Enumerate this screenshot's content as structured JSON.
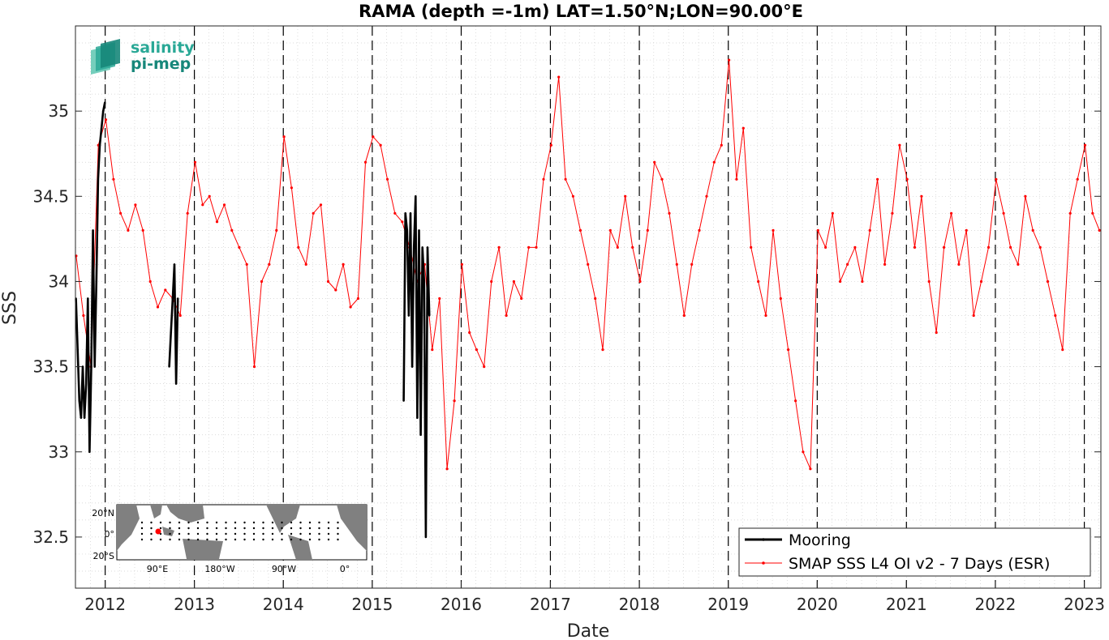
{
  "chart_data": {
    "type": "line",
    "title": "RAMA (depth =-1m) LAT=1.50°N;LON=90.00°E",
    "xlabel": "Date",
    "ylabel": "SSS",
    "xlim": [
      "2011-09-01",
      "2023-03-10"
    ],
    "ylim": [
      32.2,
      35.5
    ],
    "x_ticks": [
      "2012",
      "2013",
      "2014",
      "2015",
      "2016",
      "2017",
      "2018",
      "2019",
      "2020",
      "2021",
      "2022",
      "2023"
    ],
    "y_ticks": [
      32.5,
      33,
      33.5,
      34,
      34.5,
      35
    ],
    "y_tick_labels": [
      "32.5",
      "33",
      "33.5",
      "34",
      "34.5",
      "35"
    ],
    "grid": true,
    "legend_position": "bottom-right",
    "year_lines_dashed": true,
    "series": [
      {
        "name": "Mooring",
        "color": "#000000",
        "x": [
          "2011-09-03",
          "2011-09-10",
          "2011-09-17",
          "2011-09-24",
          "2011-10-01",
          "2011-10-08",
          "2011-10-15",
          "2011-10-22",
          "2011-10-29",
          "2011-11-05",
          "2011-11-12",
          "2011-11-19",
          "2011-11-26",
          "2011-12-03",
          "2011-12-10",
          "2011-12-17",
          "2011-12-24",
          "2011-12-31",
          null,
          "2012-09-20",
          "2012-09-27",
          "2012-10-04",
          "2012-10-11",
          "2012-10-18",
          "2012-10-25",
          null,
          "2015-05-10",
          "2015-05-17",
          "2015-05-24",
          "2015-05-31",
          "2015-06-07",
          "2015-06-14",
          "2015-06-21",
          "2015-06-28",
          "2015-07-05",
          "2015-07-12",
          "2015-07-19",
          "2015-07-26",
          "2015-08-02",
          "2015-08-09",
          "2015-08-16",
          "2015-08-23"
        ],
        "y": [
          33.9,
          33.6,
          33.3,
          33.2,
          33.5,
          33.2,
          33.4,
          33.9,
          33.0,
          33.5,
          34.3,
          33.5,
          34.0,
          34.6,
          34.8,
          34.9,
          35.0,
          35.05,
          null,
          33.5,
          33.7,
          33.9,
          34.1,
          33.4,
          33.9,
          null,
          33.3,
          34.4,
          34.3,
          33.8,
          34.4,
          33.5,
          34.2,
          34.5,
          33.2,
          34.3,
          33.1,
          34.2,
          34.0,
          32.5,
          34.2,
          33.8
        ]
      },
      {
        "name": "SMAP SSS L4 OI v2 - 7 Days (ESR)",
        "color": "#ff0000",
        "x": [
          "2011-09-04",
          "2011-10-04",
          "2011-11-04",
          "2011-12-04",
          "2012-01-04",
          "2012-02-04",
          "2012-03-04",
          "2012-04-04",
          "2012-05-04",
          "2012-06-04",
          "2012-07-04",
          "2012-08-04",
          "2012-09-04",
          "2012-10-04",
          "2012-11-04",
          "2012-12-04",
          "2013-01-04",
          "2013-02-04",
          "2013-03-04",
          "2013-04-04",
          "2013-05-04",
          "2013-06-04",
          "2013-07-04",
          "2013-08-04",
          "2013-09-04",
          "2013-10-04",
          "2013-11-04",
          "2013-12-04",
          "2014-01-04",
          "2014-02-04",
          "2014-03-04",
          "2014-04-04",
          "2014-05-04",
          "2014-06-04",
          "2014-07-04",
          "2014-08-04",
          "2014-09-04",
          "2014-10-04",
          "2014-11-04",
          "2014-12-04",
          "2015-01-04",
          "2015-02-04",
          "2015-03-04",
          "2015-04-04",
          "2015-05-04",
          "2015-06-04",
          "2015-07-04",
          "2015-08-04",
          "2015-09-04",
          "2015-10-04",
          "2015-11-04",
          "2015-12-04",
          "2016-01-04",
          "2016-02-04",
          "2016-03-04",
          "2016-04-04",
          "2016-05-04",
          "2016-06-04",
          "2016-07-04",
          "2016-08-04",
          "2016-09-04",
          "2016-10-04",
          "2016-11-04",
          "2016-12-04",
          "2017-01-04",
          "2017-02-04",
          "2017-03-04",
          "2017-04-04",
          "2017-05-04",
          "2017-06-04",
          "2017-07-04",
          "2017-08-04",
          "2017-09-04",
          "2017-10-04",
          "2017-11-04",
          "2017-12-04",
          "2018-01-04",
          "2018-02-04",
          "2018-03-04",
          "2018-04-04",
          "2018-05-04",
          "2018-06-04",
          "2018-07-04",
          "2018-08-04",
          "2018-09-04",
          "2018-10-04",
          "2018-11-04",
          "2018-12-04",
          "2019-01-04",
          "2019-02-04",
          "2019-03-04",
          "2019-04-04",
          "2019-05-04",
          "2019-06-04",
          "2019-07-04",
          "2019-08-04",
          "2019-09-04",
          "2019-10-04",
          "2019-11-04",
          "2019-12-04",
          "2020-01-04",
          "2020-02-04",
          "2020-03-04",
          "2020-04-04",
          "2020-05-04",
          "2020-06-04",
          "2020-07-04",
          "2020-08-04",
          "2020-09-04",
          "2020-10-04",
          "2020-11-04",
          "2020-12-04",
          "2021-01-04",
          "2021-02-04",
          "2021-03-04",
          "2021-04-04",
          "2021-05-04",
          "2021-06-04",
          "2021-07-04",
          "2021-08-04",
          "2021-09-04",
          "2021-10-04",
          "2021-11-04",
          "2021-12-04",
          "2022-01-04",
          "2022-02-04",
          "2022-03-04",
          "2022-04-04",
          "2022-05-04",
          "2022-06-04",
          "2022-07-04",
          "2022-08-04",
          "2022-09-04",
          "2022-10-04",
          "2022-11-04",
          "2022-12-04",
          "2023-01-04",
          "2023-02-04",
          "2023-03-04"
        ],
        "y": [
          34.15,
          33.8,
          33.5,
          34.8,
          34.95,
          34.6,
          34.4,
          34.3,
          34.45,
          34.3,
          34.0,
          33.85,
          33.95,
          33.9,
          33.8,
          34.4,
          34.7,
          34.45,
          34.5,
          34.35,
          34.45,
          34.3,
          34.2,
          34.1,
          33.5,
          34.0,
          34.1,
          34.3,
          34.85,
          34.55,
          34.2,
          34.1,
          34.4,
          34.45,
          34.0,
          33.95,
          34.1,
          33.85,
          33.9,
          34.7,
          34.85,
          34.8,
          34.6,
          34.4,
          34.35,
          34.2,
          34.0,
          34.1,
          33.6,
          33.9,
          32.9,
          33.3,
          34.1,
          33.7,
          33.6,
          33.5,
          34.0,
          34.2,
          33.8,
          34.0,
          33.9,
          34.2,
          34.2,
          34.6,
          34.8,
          35.2,
          34.6,
          34.5,
          34.3,
          34.1,
          33.9,
          33.6,
          34.3,
          34.2,
          34.5,
          34.2,
          34.0,
          34.3,
          34.7,
          34.6,
          34.4,
          34.1,
          33.8,
          34.1,
          34.3,
          34.5,
          34.7,
          34.8,
          35.3,
          34.6,
          34.9,
          34.2,
          34.0,
          33.8,
          34.3,
          33.9,
          33.6,
          33.3,
          33.0,
          32.9,
          34.3,
          34.2,
          34.4,
          34.0,
          34.1,
          34.2,
          34.0,
          34.3,
          34.6,
          34.1,
          34.4,
          34.8,
          34.6,
          34.2,
          34.5,
          34.0,
          33.7,
          34.2,
          34.4,
          34.1,
          34.3,
          33.8,
          34.0,
          34.2,
          34.6,
          34.4,
          34.2,
          34.1,
          34.5,
          34.3,
          34.2,
          34.0,
          33.8,
          33.6,
          34.4,
          34.6,
          34.8,
          34.4,
          34.3
        ]
      }
    ]
  },
  "logo": {
    "line1": "salinity",
    "line2": "pi-mep"
  },
  "inset_map": {
    "lat_labels": [
      "20°N",
      "0°",
      "20°S"
    ],
    "lon_labels": [
      "90°E",
      "180°W",
      "90°W",
      "0°"
    ],
    "land_color": "#808080",
    "marker_color": "#ff0000"
  }
}
